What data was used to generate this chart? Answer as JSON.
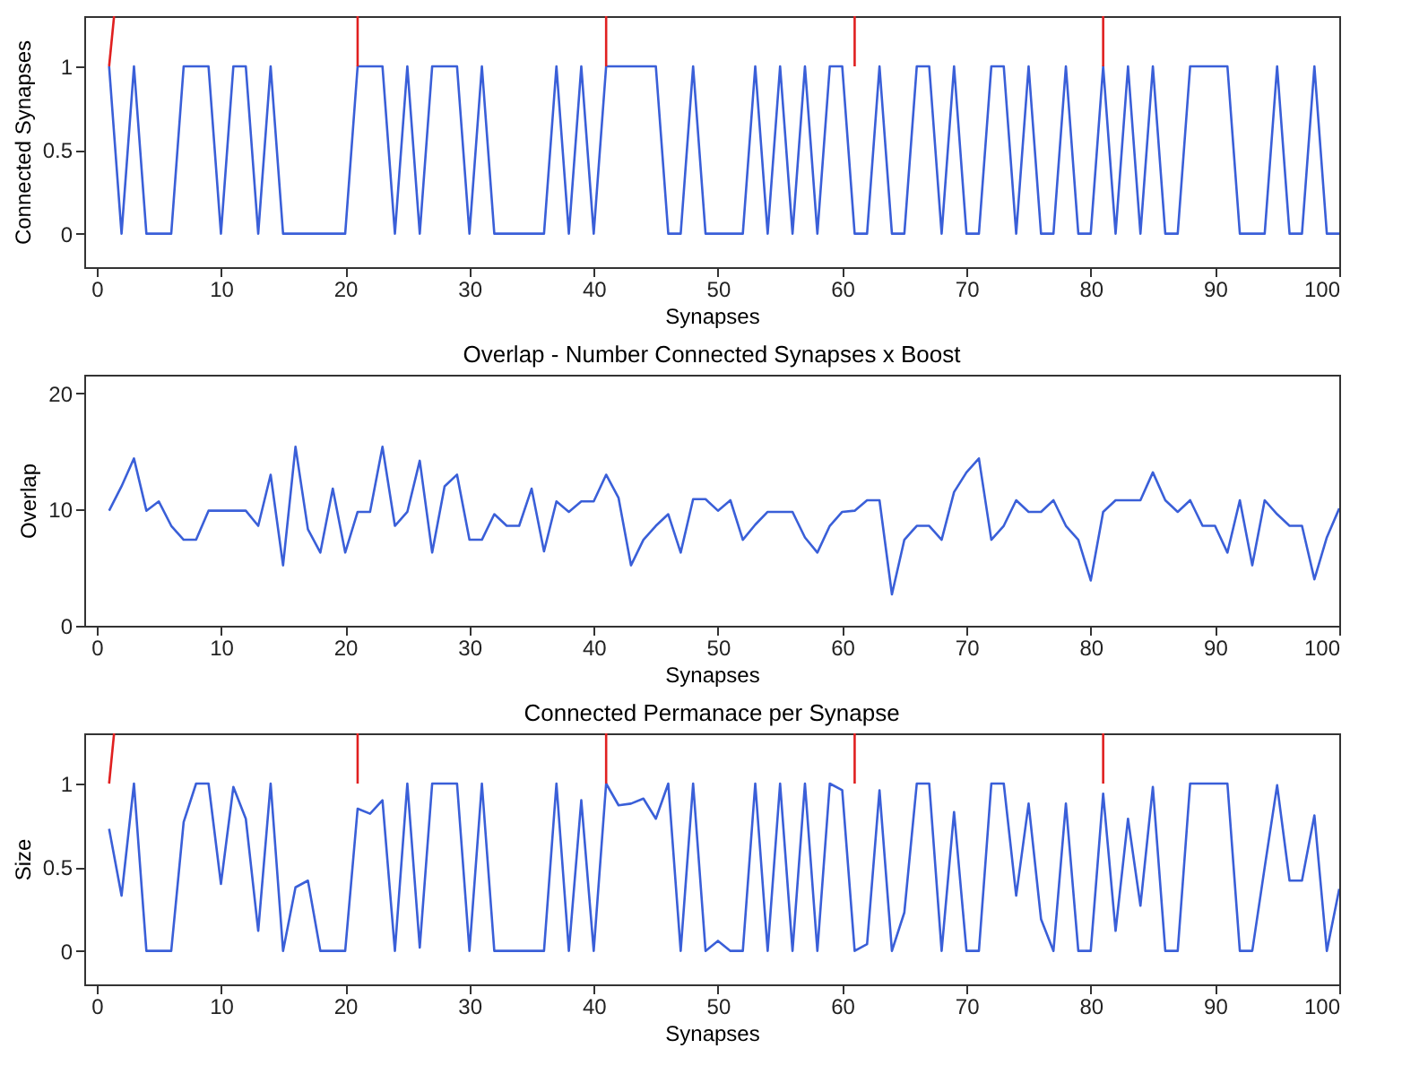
{
  "chart_data": [
    {
      "type": "line",
      "xlabel": "Synapses",
      "ylabel": "Connected Synapses",
      "x": [
        1,
        2,
        3,
        4,
        5,
        6,
        7,
        8,
        9,
        10,
        11,
        12,
        13,
        14,
        15,
        16,
        17,
        18,
        19,
        20,
        21,
        22,
        23,
        24,
        25,
        26,
        27,
        28,
        29,
        30,
        31,
        32,
        33,
        34,
        35,
        36,
        37,
        38,
        39,
        40,
        41,
        42,
        43,
        44,
        45,
        46,
        47,
        48,
        49,
        50,
        51,
        52,
        53,
        54,
        55,
        56,
        57,
        58,
        59,
        60,
        61,
        62,
        63,
        64,
        65,
        66,
        67,
        68,
        69,
        70,
        71,
        72,
        73,
        74,
        75,
        76,
        77,
        78,
        79,
        80,
        81,
        82,
        83,
        84,
        85,
        86,
        87,
        88,
        89,
        90,
        91,
        92,
        93,
        94,
        95,
        96,
        97,
        98,
        99,
        100
      ],
      "xlim": [
        -1,
        100
      ],
      "xticks": [
        0,
        10,
        20,
        30,
        40,
        50,
        60,
        70,
        80,
        90,
        100
      ],
      "ylim": [
        -0.2,
        1.3
      ],
      "yticks": [
        0,
        0.5,
        1
      ],
      "grid": false,
      "series": [
        {
          "color": "#3a5fd8",
          "values": [
            1,
            0,
            1,
            0,
            0,
            0,
            1,
            1,
            1,
            0,
            1,
            1,
            0,
            1,
            0,
            0,
            0,
            0,
            0,
            0,
            1,
            1,
            1,
            0,
            1,
            0,
            1,
            1,
            1,
            0,
            1,
            0,
            0,
            0,
            0,
            0,
            1,
            0,
            1,
            0,
            1,
            1,
            1,
            1,
            1,
            0,
            0,
            1,
            0,
            0,
            0,
            0,
            1,
            0,
            1,
            0,
            1,
            0,
            1,
            1,
            0,
            0,
            1,
            0,
            0,
            1,
            1,
            0,
            1,
            0,
            0,
            1,
            1,
            0,
            1,
            0,
            0,
            1,
            0,
            0,
            1,
            0,
            1,
            0,
            1,
            0,
            0,
            1,
            1,
            1,
            1,
            0,
            0,
            0,
            1,
            0,
            0,
            1,
            0,
            0
          ]
        },
        {
          "color": "#e02020",
          "x": [
            1,
            1.4
          ],
          "values": [
            1,
            1.3
          ]
        },
        {
          "color": "#e02020",
          "x": [
            21,
            21
          ],
          "values": [
            1,
            1.3
          ]
        },
        {
          "color": "#e02020",
          "x": [
            41,
            41
          ],
          "values": [
            1,
            1.3
          ]
        },
        {
          "color": "#e02020",
          "x": [
            61,
            61
          ],
          "values": [
            1,
            1.3
          ]
        },
        {
          "color": "#e02020",
          "x": [
            81,
            81
          ],
          "values": [
            1,
            1.3
          ]
        }
      ]
    },
    {
      "type": "line",
      "title": "Overlap - Number Connected Synapses x Boost",
      "xlabel": "Synapses",
      "ylabel": "Overlap",
      "x": [
        1,
        2,
        3,
        4,
        5,
        6,
        7,
        8,
        9,
        10,
        11,
        12,
        13,
        14,
        15,
        16,
        17,
        18,
        19,
        20,
        21,
        22,
        23,
        24,
        25,
        26,
        27,
        28,
        29,
        30,
        31,
        32,
        33,
        34,
        35,
        36,
        37,
        38,
        39,
        40,
        41,
        42,
        43,
        44,
        45,
        46,
        47,
        48,
        49,
        50,
        51,
        52,
        53,
        54,
        55,
        56,
        57,
        58,
        59,
        60,
        61,
        62,
        63,
        64,
        65,
        66,
        67,
        68,
        69,
        70,
        71,
        72,
        73,
        74,
        75,
        76,
        77,
        78,
        79,
        80,
        81,
        82,
        83,
        84,
        85,
        86,
        87,
        88,
        89,
        90,
        91,
        92,
        93,
        94,
        95,
        96,
        97,
        98,
        99,
        100
      ],
      "xlim": [
        -1,
        100
      ],
      "xticks": [
        0,
        10,
        20,
        30,
        40,
        50,
        60,
        70,
        80,
        90,
        100
      ],
      "ylim": [
        0,
        21.6
      ],
      "yticks": [
        0,
        10,
        20
      ],
      "grid": false,
      "series": [
        {
          "color": "#3a5fd8",
          "values": [
            9.9,
            12,
            14.4,
            9.9,
            10.7,
            8.6,
            7.4,
            7.4,
            9.9,
            9.9,
            9.9,
            9.9,
            8.6,
            13,
            5.2,
            15.4,
            8.3,
            6.3,
            11.8,
            6.3,
            9.8,
            9.8,
            15.4,
            8.6,
            9.8,
            14.2,
            6.3,
            12,
            13,
            7.4,
            7.4,
            9.6,
            8.6,
            8.6,
            11.8,
            6.4,
            10.7,
            9.8,
            10.7,
            10.7,
            13,
            11,
            5.2,
            7.4,
            8.6,
            9.6,
            6.3,
            10.9,
            10.9,
            9.9,
            10.8,
            7.4,
            8.7,
            9.8,
            9.8,
            9.8,
            7.6,
            6.3,
            8.6,
            9.8,
            9.9,
            10.8,
            10.8,
            2.7,
            7.4,
            8.6,
            8.6,
            7.4,
            11.5,
            13.2,
            14.4,
            7.4,
            8.6,
            10.8,
            9.8,
            9.8,
            10.8,
            8.6,
            7.4,
            3.9,
            9.8,
            10.8,
            10.8,
            10.8,
            13.2,
            10.8,
            9.8,
            10.8,
            8.6,
            8.6,
            6.3,
            10.8,
            5.2,
            10.8,
            9.6,
            8.6,
            8.6,
            4,
            7.6,
            10.1
          ]
        }
      ]
    },
    {
      "type": "line",
      "title": "Connected Permanace per Synapse",
      "xlabel": "Synapses",
      "ylabel": "Size",
      "x": [
        1,
        2,
        3,
        4,
        5,
        6,
        7,
        8,
        9,
        10,
        11,
        12,
        13,
        14,
        15,
        16,
        17,
        18,
        19,
        20,
        21,
        22,
        23,
        24,
        25,
        26,
        27,
        28,
        29,
        30,
        31,
        32,
        33,
        34,
        35,
        36,
        37,
        38,
        39,
        40,
        41,
        42,
        43,
        44,
        45,
        46,
        47,
        48,
        49,
        50,
        51,
        52,
        53,
        54,
        55,
        56,
        57,
        58,
        59,
        60,
        61,
        62,
        63,
        64,
        65,
        66,
        67,
        68,
        69,
        70,
        71,
        72,
        73,
        74,
        75,
        76,
        77,
        78,
        79,
        80,
        81,
        82,
        83,
        84,
        85,
        86,
        87,
        88,
        89,
        90,
        91,
        92,
        93,
        94,
        95,
        96,
        97,
        98,
        99,
        100
      ],
      "xlim": [
        -1,
        100
      ],
      "xticks": [
        0,
        10,
        20,
        30,
        40,
        50,
        60,
        70,
        80,
        90,
        100
      ],
      "ylim": [
        -0.2,
        1.3
      ],
      "yticks": [
        0,
        0.5,
        1
      ],
      "grid": false,
      "series": [
        {
          "color": "#3a5fd8",
          "values": [
            0.73,
            0.33,
            1,
            0,
            0,
            0,
            0.77,
            1,
            1,
            0.4,
            0.98,
            0.79,
            0.12,
            1,
            0,
            0.38,
            0.42,
            0,
            0,
            0,
            0.85,
            0.82,
            0.9,
            0,
            1,
            0.02,
            1,
            1,
            1,
            0,
            1,
            0,
            0,
            0,
            0,
            0,
            1,
            0,
            0.9,
            0,
            1,
            0.87,
            0.88,
            0.91,
            0.79,
            1,
            0,
            1,
            0,
            0.06,
            0,
            0,
            1,
            0,
            1,
            0,
            1,
            0,
            1,
            0.96,
            0,
            0.04,
            0.96,
            0,
            0.23,
            1,
            1,
            0,
            0.83,
            0,
            0,
            1,
            1,
            0.33,
            0.88,
            0.19,
            0,
            0.88,
            0,
            0,
            0.94,
            0.12,
            0.79,
            0.27,
            0.98,
            0,
            0,
            1,
            1,
            1,
            1,
            0,
            0,
            0.5,
            0.99,
            0.42,
            0.42,
            0.81,
            0,
            0.37
          ]
        },
        {
          "color": "#e02020",
          "x": [
            1,
            1.4
          ],
          "values": [
            1,
            1.3
          ]
        },
        {
          "color": "#e02020",
          "x": [
            21,
            21
          ],
          "values": [
            1,
            1.3
          ]
        },
        {
          "color": "#e02020",
          "x": [
            41,
            41
          ],
          "values": [
            1,
            1.3
          ]
        },
        {
          "color": "#e02020",
          "x": [
            61,
            61
          ],
          "values": [
            1,
            1.3
          ]
        },
        {
          "color": "#e02020",
          "x": [
            81,
            81
          ],
          "values": [
            1,
            1.3
          ]
        }
      ]
    }
  ]
}
